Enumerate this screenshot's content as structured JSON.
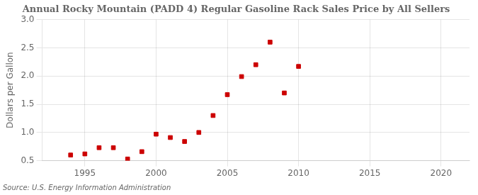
{
  "chart_data": {
    "type": "scatter",
    "title": "Annual Rocky Mountain (PADD 4) Regular Gasoline Rack Sales Price by All Sellers",
    "ylabel": "Dollars per Gallon",
    "source": "Source: U.S. Energy Information Administration",
    "x": [
      1994,
      1995,
      1996,
      1997,
      1998,
      1999,
      2000,
      2001,
      2002,
      2003,
      2004,
      2005,
      2006,
      2007,
      2008,
      2009,
      2010
    ],
    "values": [
      0.6,
      0.62,
      0.73,
      0.73,
      0.53,
      0.66,
      0.97,
      0.91,
      0.84,
      1.0,
      1.3,
      1.67,
      1.99,
      2.2,
      2.6,
      1.7,
      2.17
    ],
    "color": "#cc0000",
    "marker": "square",
    "xlim": [
      1992,
      2022
    ],
    "ylim": [
      0.5,
      3.0
    ],
    "xticks": [
      1995,
      2000,
      2005,
      2010,
      2015,
      2020
    ],
    "yticks": [
      0.5,
      {
        "value": 1.0,
        "label": "1.0"
      },
      1.5,
      {
        "value": 2.0,
        "label": "2.0"
      },
      2.5,
      {
        "value": 3.0,
        "label": "3.0"
      }
    ],
    "grid": true
  }
}
